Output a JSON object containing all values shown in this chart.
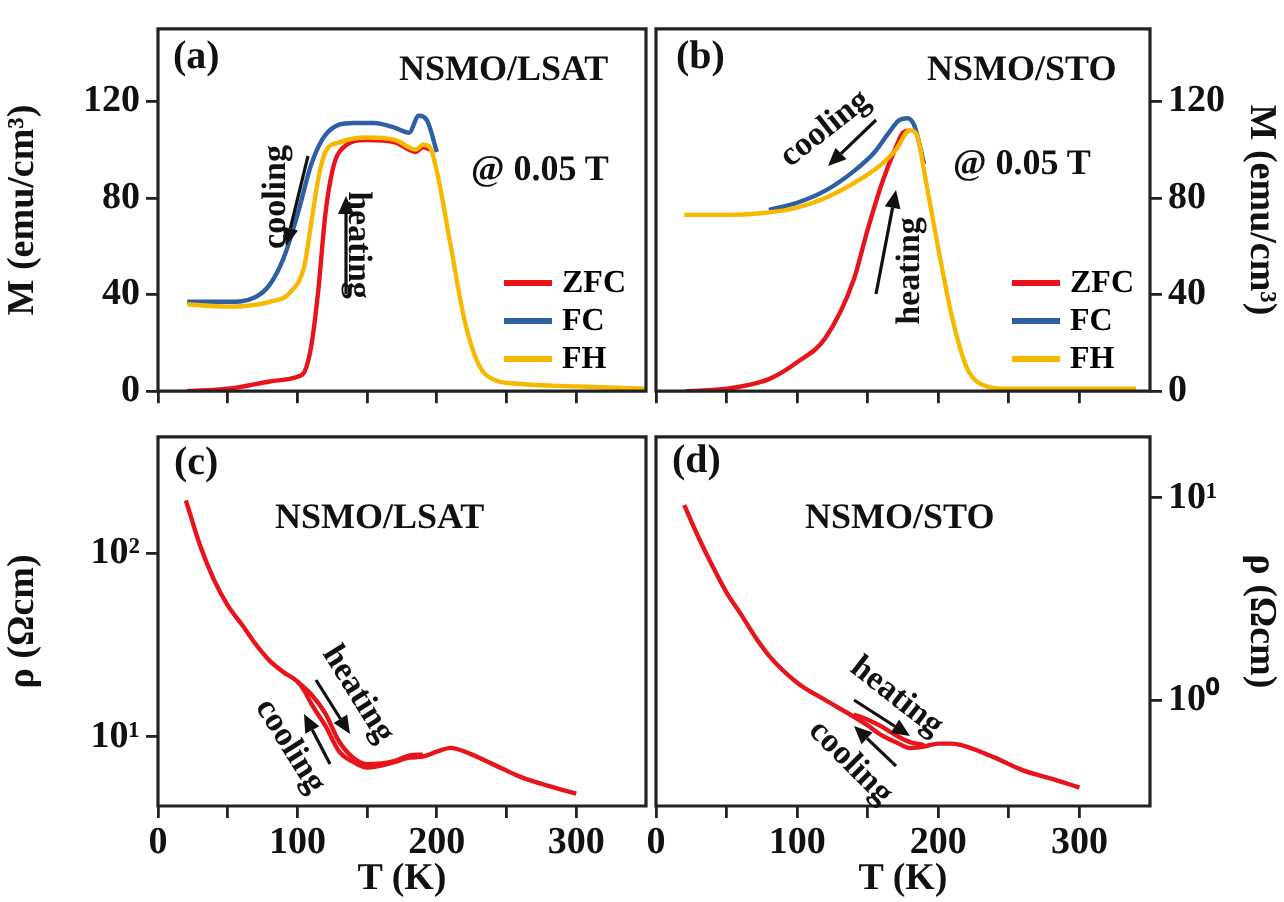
{
  "chart_data": [
    {
      "type": "line",
      "title": "NSMO/LSAT",
      "ylabel": "M (emu/cm³)",
      "xlim": [
        0,
        350
      ],
      "ylim": [
        0,
        150
      ],
      "tick_labels": "y",
      "legend": "right",
      "grid": false,
      "xticks": [
        0,
        {
          "value": 50,
          "label": null
        },
        100,
        {
          "value": 150,
          "label": null
        },
        200,
        {
          "value": 250,
          "label": null
        },
        300
      ],
      "yticks": [
        0,
        40,
        80,
        120
      ],
      "annotations": [
        "(a)",
        "@ 0.05 T",
        "cooling",
        "heating"
      ],
      "series": [
        {
          "name": "ZFC",
          "color": "#e8141c",
          "x": [
            21,
            50,
            80,
            100,
            105,
            110,
            115,
            120,
            125,
            130,
            150,
            170,
            185,
            190,
            195
          ],
          "values": [
            0,
            1,
            4,
            6,
            8,
            19,
            42,
            73,
            91,
            99,
            104,
            103,
            99,
            101,
            100
          ]
        },
        {
          "name": "FC",
          "color": "#2e5fa3",
          "x": [
            21,
            50,
            70,
            80,
            90,
            100,
            110,
            120,
            140,
            155,
            170,
            180,
            187,
            193,
            200
          ],
          "values": [
            37,
            37,
            39,
            44,
            55,
            73,
            94,
            106,
            111,
            111,
            109,
            107,
            114,
            112,
            99
          ]
        },
        {
          "name": "FH",
          "color": "#f9b800",
          "x": [
            21,
            50,
            80,
            95,
            105,
            110,
            115,
            120,
            130,
            150,
            170,
            185,
            190,
            195,
            200,
            210,
            220,
            230,
            240,
            260,
            300,
            350
          ],
          "values": [
            36,
            35,
            37,
            41,
            52,
            70,
            88,
            99,
            103,
            105,
            104,
            100,
            102,
            101,
            91,
            60,
            29,
            11,
            5,
            3,
            2,
            1
          ]
        }
      ]
    },
    {
      "type": "line",
      "title": "NSMO/STO",
      "ylabel": "M (emu/cm³)",
      "xlim": [
        0,
        350
      ],
      "ylim": [
        0,
        150
      ],
      "tick_labels": "y",
      "legend": "right",
      "grid": false,
      "xticks": [
        0,
        {
          "value": 50,
          "label": null
        },
        100,
        {
          "value": 150,
          "label": null
        },
        200,
        {
          "value": 250,
          "label": null
        },
        300
      ],
      "yticks": [
        0,
        40,
        80,
        120
      ],
      "annotations": [
        "(b)",
        "@ 0.05 T",
        "cooling",
        "heating"
      ],
      "series": [
        {
          "name": "ZFC",
          "color": "#e8141c",
          "x": [
            21,
            50,
            80,
            100,
            120,
            140,
            150,
            160,
            170,
            175,
            180
          ],
          "values": [
            0,
            1,
            5,
            12,
            22,
            46,
            67,
            86,
            101,
            107,
            108
          ]
        },
        {
          "name": "FC",
          "color": "#2e5fa3",
          "x": [
            80,
            100,
            120,
            140,
            155,
            165,
            172,
            178,
            183,
            190
          ],
          "values": [
            75,
            78,
            83,
            91,
            99,
            107,
            112,
            113,
            110,
            94
          ]
        },
        {
          "name": "FH",
          "color": "#f9b800",
          "x": [
            20,
            50,
            80,
            100,
            120,
            140,
            160,
            170,
            180,
            185,
            190,
            200,
            210,
            220,
            230,
            250,
            300,
            340
          ],
          "values": [
            73,
            73,
            74,
            76,
            80,
            86,
            94,
            100,
            108,
            106,
            91,
            59,
            30,
            10,
            3,
            1,
            1,
            1
          ]
        }
      ]
    },
    {
      "type": "line",
      "title": "NSMO/LSAT",
      "xlabel": "T (K)",
      "ylabel": "ρ (Ωcm)",
      "xlim": [
        0,
        350
      ],
      "ylim": [
        4.2,
        430
      ],
      "log": true,
      "grid": false,
      "xticks": [
        0,
        {
          "value": 50,
          "label": null
        },
        100,
        {
          "value": 150,
          "label": null
        },
        200,
        {
          "value": 250,
          "label": null
        },
        300
      ],
      "yticks": [
        {
          "value": 10,
          "label": "10¹"
        },
        {
          "value": 100,
          "label": "10²"
        }
      ],
      "annotations": [
        "(c)",
        "heating",
        "cooling"
      ],
      "series": [
        {
          "color": "#e8141c",
          "x": [
            20,
            30,
            40,
            50,
            60,
            70,
            80,
            90,
            100,
            105,
            110,
            120,
            130,
            140,
            150,
            170,
            180,
            190,
            200,
            210,
            220,
            240,
            260,
            280,
            300
          ],
          "values": [
            194,
            111,
            72,
            52,
            41,
            32,
            26,
            22.5,
            20,
            17.8,
            15.1,
            11.5,
            8.3,
            7.3,
            6.8,
            7.3,
            7.7,
            7.8,
            8.3,
            8.7,
            8.3,
            7.1,
            6.05,
            5.4,
            4.9
          ]
        },
        {
          "color": "#e8141c",
          "x": [
            100,
            110,
            120,
            130,
            140,
            150,
            170,
            180,
            190
          ],
          "values": [
            20,
            17,
            13.4,
            9.4,
            7.7,
            7.1,
            7.4,
            7.9,
            8.0
          ]
        }
      ]
    },
    {
      "type": "line",
      "title": "NSMO/STO",
      "xlabel": "T (K)",
      "ylabel": "ρ (Ωcm)",
      "xlim": [
        0,
        350
      ],
      "ylim": [
        0.3,
        20
      ],
      "log": true,
      "grid": false,
      "xticks": [
        0,
        {
          "value": 50,
          "label": null
        },
        100,
        {
          "value": 150,
          "label": null
        },
        200,
        {
          "value": 250,
          "label": null
        },
        300
      ],
      "yticks": [
        {
          "value": 1,
          "label": "10⁰"
        },
        {
          "value": 10,
          "label": "10¹"
        }
      ],
      "annotations": [
        "(d)",
        "heating",
        "cooling"
      ],
      "series": [
        {
          "color": "#e8141c",
          "x": [
            20,
            30,
            40,
            50,
            60,
            70,
            80,
            100,
            120,
            140,
            150,
            160,
            170,
            180,
            190,
            200,
            210,
            220,
            240,
            260,
            280,
            300
          ],
          "values": [
            9.2,
            6.4,
            4.6,
            3.4,
            2.67,
            2.07,
            1.66,
            1.22,
            1.0,
            0.83,
            0.75,
            0.67,
            0.62,
            0.58,
            0.59,
            0.61,
            0.61,
            0.59,
            0.52,
            0.45,
            0.41,
            0.37
          ]
        },
        {
          "color": "#e8141c",
          "x": [
            140,
            150,
            160,
            170,
            180,
            190
          ],
          "values": [
            0.85,
            0.8,
            0.74,
            0.67,
            0.62,
            0.6
          ]
        }
      ]
    }
  ]
}
